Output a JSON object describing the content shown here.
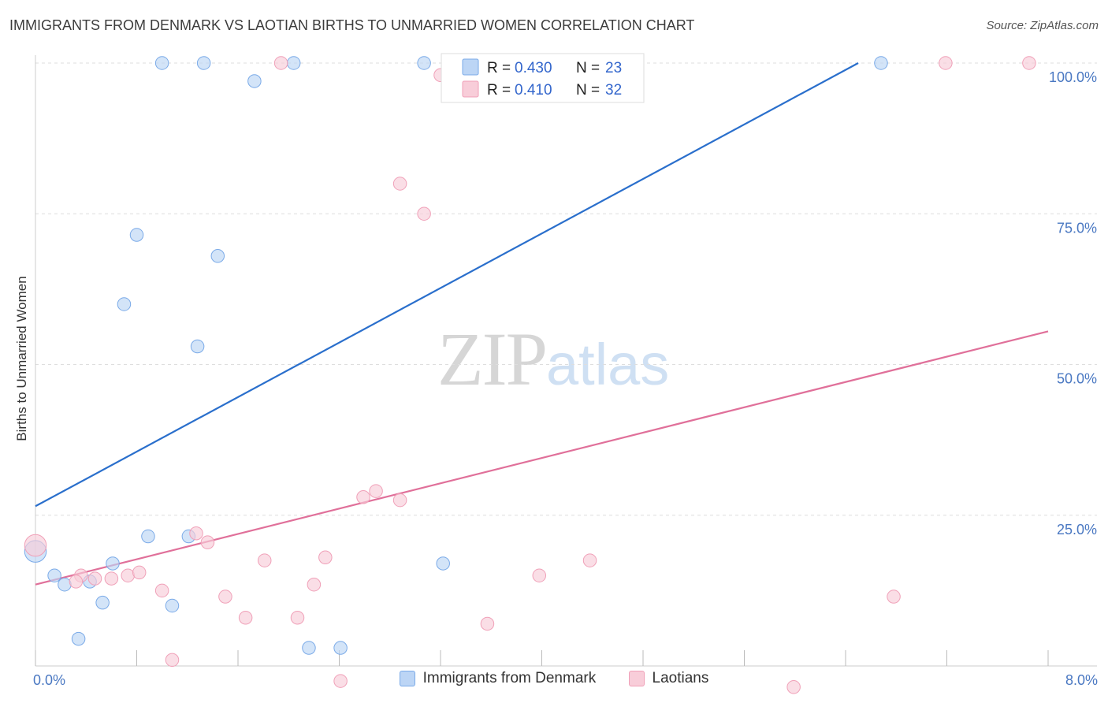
{
  "title": "IMMIGRANTS FROM DENMARK VS LAOTIAN BIRTHS TO UNMARRIED WOMEN CORRELATION CHART",
  "source": "Source: ZipAtlas.com",
  "watermark": {
    "zip": "ZIP",
    "atlas": "atlas"
  },
  "chart_data": {
    "type": "scatter",
    "xlabel": "",
    "ylabel": "Births to Unmarried Women",
    "xlim": [
      0,
      8
    ],
    "ylim": [
      0,
      100
    ],
    "x_tick_labels": {
      "min": "0.0%",
      "max": "8.0%"
    },
    "y_ticks": [
      25,
      50,
      75,
      100
    ],
    "y_tick_labels": [
      "25.0%",
      "50.0%",
      "75.0%",
      "100.0%"
    ],
    "grid": true,
    "legend_position": "bottom",
    "series": [
      {
        "name": "Immigrants from Denmark",
        "color": "#7aaae8",
        "fill": "#bcd5f5",
        "line_color": "#2a6fcc",
        "R": "0.430",
        "N": "23",
        "trend": {
          "x": [
            0,
            6.5
          ],
          "y": [
            26.5,
            100
          ]
        },
        "points": [
          [
            1.0,
            100
          ],
          [
            1.33,
            100
          ],
          [
            2.04,
            100
          ],
          [
            3.07,
            100
          ],
          [
            6.68,
            100
          ],
          [
            1.73,
            97
          ],
          [
            0.8,
            71.5
          ],
          [
            1.44,
            68
          ],
          [
            0.7,
            60
          ],
          [
            1.28,
            53
          ],
          [
            0.0,
            19
          ],
          [
            0.15,
            15
          ],
          [
            0.23,
            13.5
          ],
          [
            0.43,
            14
          ],
          [
            0.61,
            17
          ],
          [
            0.89,
            21.5
          ],
          [
            1.21,
            21.5
          ],
          [
            3.22,
            17
          ],
          [
            0.53,
            10.5
          ],
          [
            0.34,
            4.5
          ],
          [
            1.08,
            10
          ],
          [
            2.16,
            3
          ],
          [
            2.41,
            3
          ]
        ],
        "sizes": [
          12,
          12,
          12,
          12,
          12,
          12,
          12,
          12,
          12,
          12,
          20,
          12,
          12,
          12,
          12,
          12,
          12,
          12,
          12,
          12,
          12,
          12,
          12
        ]
      },
      {
        "name": "Laotians",
        "color": "#f0a0b8",
        "fill": "#f8cdd9",
        "line_color": "#e0709a",
        "R": "0.410",
        "N": "32",
        "trend": {
          "x": [
            0,
            8
          ],
          "y": [
            13.5,
            55.5
          ]
        },
        "points": [
          [
            1.94,
            100
          ],
          [
            7.19,
            100
          ],
          [
            7.85,
            100
          ],
          [
            3.2,
            98
          ],
          [
            2.88,
            80
          ],
          [
            3.07,
            75
          ],
          [
            2.69,
            29
          ],
          [
            2.59,
            28
          ],
          [
            2.88,
            27.5
          ],
          [
            0.0,
            20
          ],
          [
            1.27,
            22
          ],
          [
            1.36,
            20.5
          ],
          [
            2.29,
            18
          ],
          [
            1.81,
            17.5
          ],
          [
            4.38,
            17.5
          ],
          [
            0.36,
            15
          ],
          [
            0.6,
            14.5
          ],
          [
            0.73,
            15
          ],
          [
            0.82,
            15.5
          ],
          [
            0.47,
            14.5
          ],
          [
            0.32,
            14
          ],
          [
            2.2,
            13.5
          ],
          [
            3.98,
            15
          ],
          [
            1.0,
            12.5
          ],
          [
            1.5,
            11.5
          ],
          [
            6.78,
            11.5
          ],
          [
            1.66,
            8
          ],
          [
            2.07,
            8
          ],
          [
            3.57,
            7
          ],
          [
            1.08,
            1
          ],
          [
            2.41,
            -2.5
          ],
          [
            5.99,
            -3.5
          ]
        ],
        "sizes": [
          12,
          12,
          12,
          12,
          12,
          12,
          12,
          12,
          12,
          20,
          12,
          12,
          12,
          12,
          12,
          12,
          12,
          12,
          12,
          12,
          12,
          12,
          12,
          12,
          12,
          12,
          12,
          12,
          12,
          12,
          12,
          12
        ]
      }
    ]
  }
}
